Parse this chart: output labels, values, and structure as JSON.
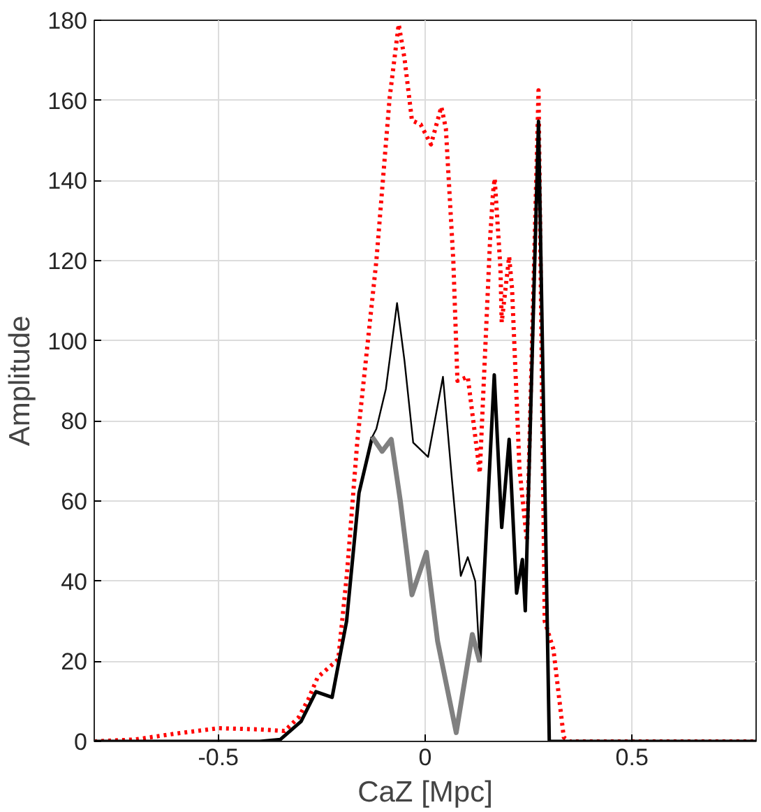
{
  "chart_data": {
    "type": "line",
    "xlabel": "CaZ [Mpc]",
    "ylabel": "Amplitude",
    "xlim": [
      -0.8,
      0.8
    ],
    "ylim": [
      0,
      180
    ],
    "xticks": [
      -0.5,
      0,
      0.5
    ],
    "yticks": [
      0,
      20,
      40,
      60,
      80,
      100,
      120,
      140,
      160,
      180
    ],
    "grid": true,
    "series": [
      {
        "color": "#ff0000",
        "line_style": "dotted",
        "x": [
          -0.8,
          -0.7,
          -0.6,
          -0.5,
          -0.4,
          -0.34,
          -0.306,
          -0.282,
          -0.26,
          -0.21,
          -0.189,
          -0.164,
          -0.118,
          -0.086,
          -0.064,
          -0.05,
          -0.032,
          -0.011,
          0.014,
          0.039,
          0.05,
          0.068,
          0.078,
          0.103,
          0.132,
          0.157,
          0.164,
          0.168,
          0.182,
          0.185,
          0.203,
          0.21,
          0.228,
          0.246,
          0.274,
          0.289,
          0.31,
          0.335,
          0.35,
          0.8
        ],
        "values": [
          0,
          0.5,
          2,
          3.3,
          3,
          2.6,
          6,
          10.6,
          16,
          20.5,
          42,
          75,
          120,
          160.6,
          179,
          170.5,
          155,
          154,
          149,
          158.4,
          153,
          120,
          90,
          91,
          67,
          125.5,
          137,
          140.5,
          118,
          104.6,
          121,
          113,
          68,
          50,
          162.5,
          30,
          23,
          1,
          0,
          0
        ]
      },
      {
        "color": "#000000",
        "line_style": "solid",
        "x": [
          -0.128,
          -0.118,
          -0.095,
          -0.068,
          -0.05,
          -0.029,
          0.007,
          0.043,
          0.065,
          0.086,
          0.103,
          0.121,
          0.132
        ],
        "values": [
          76,
          78,
          88,
          109.4,
          95,
          74.6,
          71,
          91,
          65,
          41.3,
          46,
          40,
          19.8
        ]
      },
      {
        "color": "#000000",
        "line_style": "solid",
        "x": [
          -0.8,
          -0.4,
          -0.35,
          -0.3,
          -0.264,
          -0.225,
          -0.19,
          -0.16,
          -0.128,
          null,
          0.132,
          0.167,
          0.185,
          0.203,
          0.221,
          0.235,
          0.242,
          0.274,
          0.3,
          0.8
        ],
        "values": [
          0,
          0,
          0.5,
          5,
          12.4,
          11,
          30,
          62,
          76,
          null,
          19.8,
          91.5,
          53.4,
          75.4,
          37,
          45.4,
          32.6,
          154.8,
          0,
          0
        ]
      },
      {
        "color": "#808080",
        "line_style": "solid",
        "x": [
          -0.128,
          -0.104,
          -0.082,
          -0.06,
          -0.032,
          0.003,
          0.03,
          0.075,
          0.114,
          0.132
        ],
        "values": [
          76,
          72.4,
          75.4,
          60,
          36.6,
          47.2,
          25,
          2.2,
          26.7,
          19.8
        ]
      }
    ]
  }
}
